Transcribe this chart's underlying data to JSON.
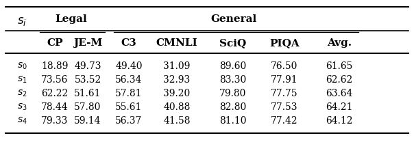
{
  "row_labels": [
    "$s_0$",
    "$s_1$",
    "$s_2$",
    "$s_3$",
    "$s_4$"
  ],
  "col_headers": [
    "CP",
    "JE-M",
    "C3",
    "CMNLI",
    "SciQ",
    "PIQA",
    "Avg."
  ],
  "group_headers": [
    "Legal",
    "General"
  ],
  "data": [
    [
      18.89,
      49.73,
      49.4,
      31.09,
      89.6,
      76.5,
      61.65
    ],
    [
      73.56,
      53.52,
      56.34,
      32.93,
      83.3,
      77.91,
      62.62
    ],
    [
      62.22,
      51.61,
      57.81,
      39.2,
      79.8,
      77.75,
      63.64
    ],
    [
      78.44,
      57.8,
      55.61,
      40.88,
      82.8,
      77.53,
      64.21
    ],
    [
      79.33,
      59.14,
      56.37,
      41.58,
      81.1,
      77.42,
      64.12
    ]
  ],
  "background_color": "#ffffff",
  "text_color": "#000000",
  "data_fontsize": 10,
  "header_fontsize": 11
}
